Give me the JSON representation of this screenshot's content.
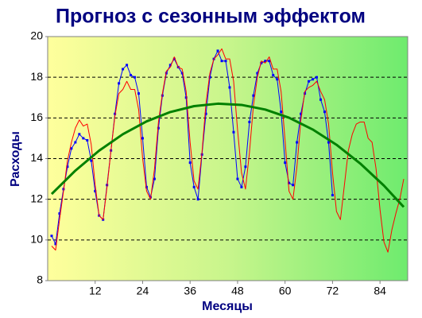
{
  "chart_data": {
    "type": "line",
    "title": "Прогноз с сезонным эффектом",
    "xlabel": "Месяцы",
    "ylabel": "Расходы",
    "xlim": [
      0,
      91
    ],
    "xticks": [
      12,
      24,
      36,
      48,
      60,
      72,
      84
    ],
    "ylim": [
      8,
      20
    ],
    "yticks": [
      8,
      10,
      12,
      14,
      16,
      18,
      20
    ],
    "grid": true,
    "x": [
      1,
      2,
      3,
      4,
      5,
      6,
      7,
      8,
      9,
      10,
      11,
      12,
      13,
      14,
      15,
      16,
      17,
      18,
      19,
      20,
      21,
      22,
      23,
      24,
      25,
      26,
      27,
      28,
      29,
      30,
      31,
      32,
      33,
      34,
      35,
      36,
      37,
      38,
      39,
      40,
      41,
      42,
      43,
      44,
      45,
      46,
      47,
      48,
      49,
      50,
      51,
      52,
      53,
      54,
      55,
      56,
      57,
      58,
      59,
      60,
      61,
      62,
      63,
      64,
      65,
      66,
      67,
      68,
      69,
      70,
      71,
      72,
      73,
      74,
      75,
      76,
      77,
      78,
      79,
      80,
      81,
      82,
      83,
      84,
      85,
      86,
      87,
      88,
      89,
      90
    ],
    "series": [
      {
        "color": "#0000ff",
        "markers": true,
        "values": [
          10.2,
          9.8,
          11.3,
          12.5,
          13.6,
          14.5,
          14.8,
          15.2,
          15.0,
          14.9,
          13.9,
          12.4,
          11.2,
          11.0,
          12.7,
          14.4,
          16.2,
          17.7,
          18.4,
          18.6,
          18.1,
          18.0,
          17.2,
          15.0,
          12.6,
          12.1,
          13.0,
          15.5,
          17.1,
          18.2,
          18.6,
          18.9,
          18.5,
          18.2,
          17.0,
          13.8,
          12.6,
          12.0,
          14.2,
          16.2,
          18.0,
          18.9,
          19.3,
          18.8,
          18.8,
          17.5,
          15.3,
          13.0,
          12.6,
          13.6,
          15.8,
          17.1,
          18.2,
          18.7,
          18.8,
          18.8,
          18.1,
          17.9,
          16.3,
          13.8,
          12.8,
          12.7,
          14.8,
          16.2,
          17.2,
          17.8,
          17.9,
          18.0,
          16.9,
          16.3,
          14.8,
          12.2,
          null,
          null,
          null,
          null,
          null,
          null,
          null,
          null,
          null,
          null,
          null,
          null,
          null,
          null,
          null,
          null,
          null,
          null
        ]
      },
      {
        "color": "#ff0000",
        "markers": false,
        "values": [
          9.7,
          9.5,
          11.0,
          12.4,
          13.9,
          14.8,
          15.5,
          15.9,
          15.6,
          15.7,
          14.7,
          12.7,
          11.2,
          11.0,
          12.6,
          14.4,
          16.1,
          17.2,
          17.4,
          17.8,
          17.4,
          17.4,
          16.4,
          14.0,
          12.4,
          12.0,
          13.5,
          15.8,
          17.2,
          18.3,
          18.5,
          19.0,
          18.5,
          18.4,
          17.3,
          14.8,
          12.9,
          12.5,
          14.3,
          16.7,
          18.2,
          18.9,
          19.1,
          19.4,
          18.9,
          18.9,
          17.8,
          15.4,
          13.3,
          12.5,
          14.3,
          16.6,
          18.0,
          18.8,
          18.7,
          19.0,
          18.4,
          18.4,
          17.3,
          14.9,
          12.4,
          12.0,
          13.6,
          15.9,
          17.3,
          17.5,
          17.6,
          17.8,
          17.3,
          16.9,
          15.7,
          13.3,
          11.4,
          11.0,
          12.7,
          14.4,
          15.2,
          15.7,
          15.8,
          15.8,
          15.0,
          14.8,
          13.5,
          11.5,
          9.9,
          9.4,
          10.5,
          11.3,
          12.0,
          13.0
        ]
      },
      {
        "color": "#008000",
        "markers": false,
        "width": 3,
        "x": [
          1,
          7,
          13,
          19,
          25,
          31,
          37,
          43,
          49,
          55,
          61,
          67,
          73,
          79,
          85,
          90
        ],
        "values": [
          12.26,
          13.41,
          14.39,
          15.2,
          15.83,
          16.29,
          16.58,
          16.7,
          16.64,
          16.41,
          16.01,
          15.43,
          14.68,
          13.76,
          12.67,
          11.62
        ]
      }
    ]
  }
}
